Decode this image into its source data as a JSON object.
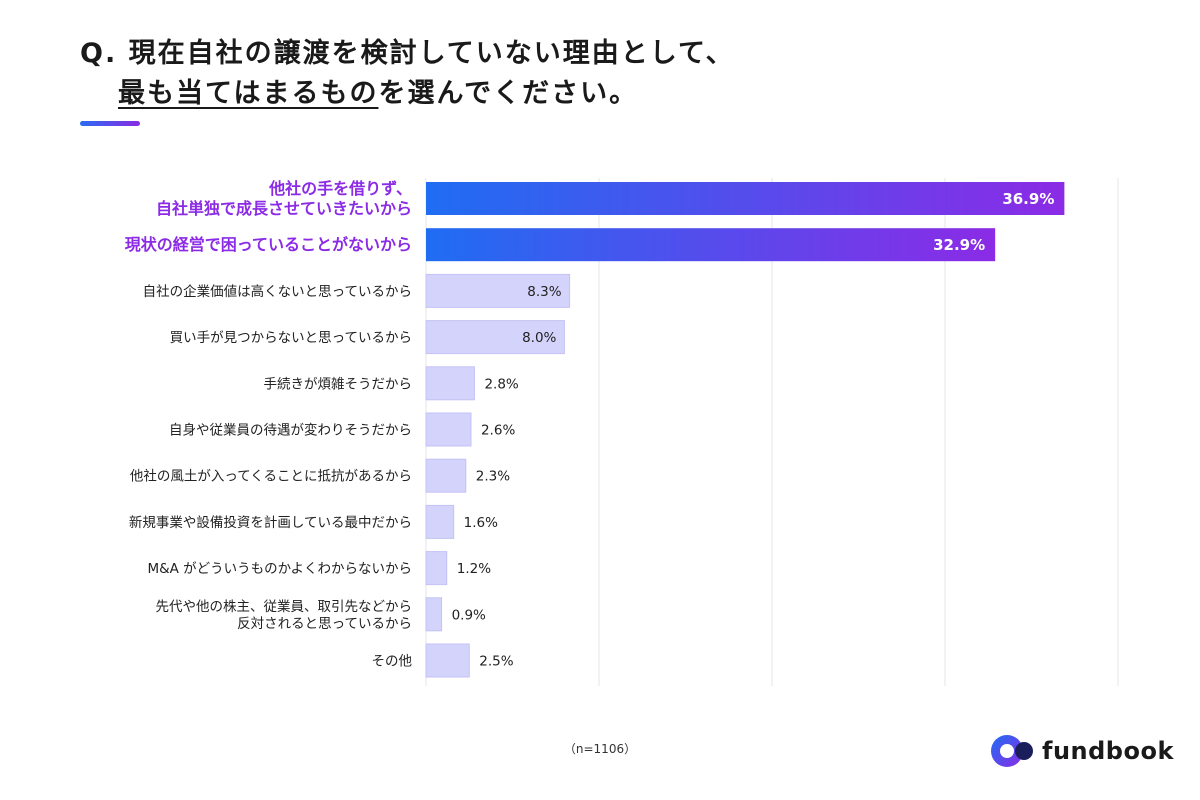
{
  "title": {
    "line1": "Q. 現在自社の譲渡を検討していない理由として、",
    "line2_underlined": "最も当てはまるもの",
    "line2_rest": "を選んでください。"
  },
  "colors": {
    "top_gradient_start": "#1f6df2",
    "top_gradient_end": "#8b2be6",
    "highlight_label": "#8b2be6",
    "other_bar_fill": "#d4d3fb",
    "other_bar_stroke": "#c4c2f4",
    "grid": "#e4e4e8",
    "text": "#222222"
  },
  "chart_data": {
    "type": "bar",
    "orientation": "horizontal",
    "xlim": [
      0,
      40
    ],
    "grid": true,
    "categories": [
      "他社の手を借りず、\n自社単独で成長させていきたいから",
      "現状の経営で困っていることがないから",
      "自社の企業価値は高くないと思っているから",
      "買い手が見つからないと思っているから",
      "手続きが煩雑そうだから",
      "自身や従業員の待遇が変わりそうだから",
      "他社の風土が入ってくることに抵抗があるから",
      "新規事業や設備投資を計画している最中だから",
      "M&A がどういうものかよくわからないから",
      "先代や他の株主、従業員、取引先などから\n反対されると思っているから",
      "その他"
    ],
    "values": [
      36.9,
      32.9,
      8.3,
      8.0,
      2.8,
      2.6,
      2.3,
      1.6,
      1.2,
      0.9,
      2.5
    ],
    "value_labels": [
      "36.9%",
      "32.9%",
      "8.3%",
      "8.0%",
      "2.8%",
      "2.6%",
      "2.3%",
      "1.6%",
      "1.2%",
      "0.9%",
      "2.5%"
    ],
    "highlighted": [
      true,
      true,
      false,
      false,
      false,
      false,
      false,
      false,
      false,
      false,
      false
    ]
  },
  "note": "（n=1106）",
  "logo": {
    "text": "fundbook",
    "colors": {
      "blue": "#1f6df2",
      "purple": "#8b2be6",
      "navy": "#1a1f5c"
    }
  }
}
